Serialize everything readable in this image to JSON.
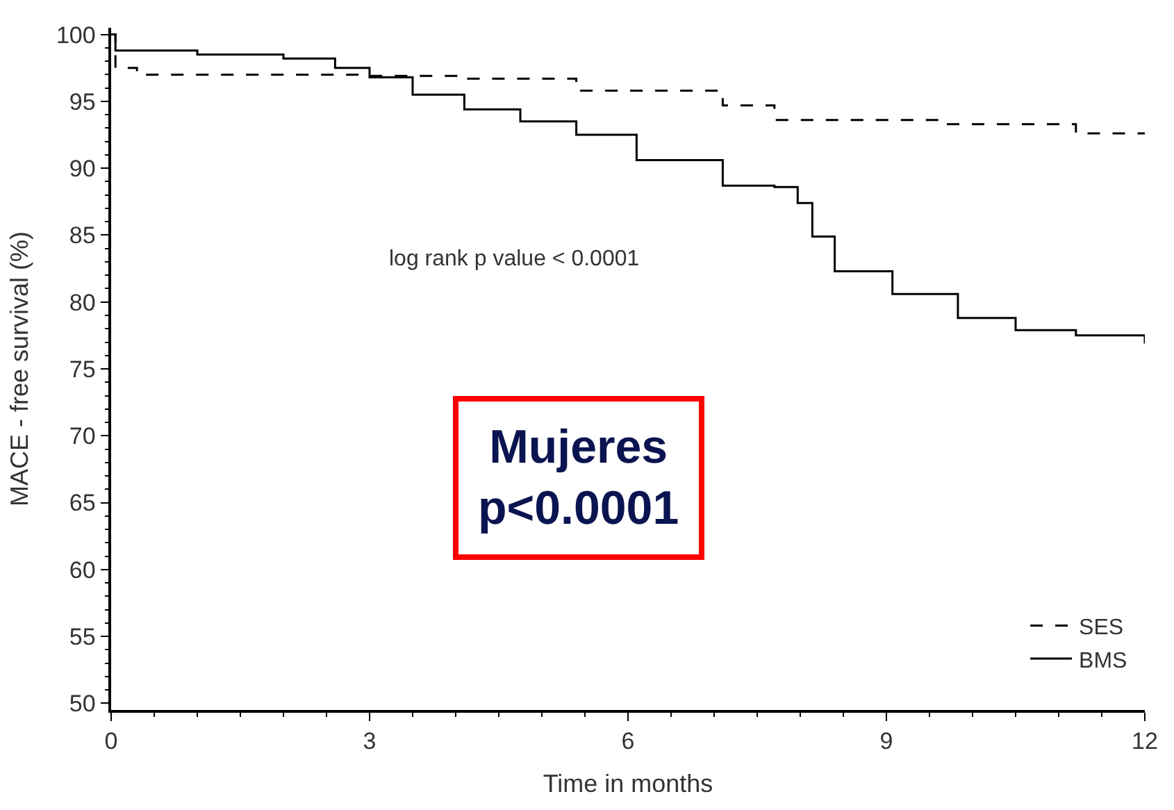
{
  "chart_data": {
    "type": "step",
    "xlabel": "Time in months",
    "ylabel": "MACE - free survival (%)",
    "xlim": [
      0,
      12
    ],
    "xticks": [
      0,
      3,
      6,
      9,
      12
    ],
    "ylim": [
      49.5,
      100.5
    ],
    "yticks": [
      50,
      55,
      60,
      65,
      70,
      75,
      80,
      85,
      90,
      95,
      100
    ],
    "legend": "bottom right",
    "annotations": [
      "log rank p value < 0.0001",
      "Mujeres\np<0.0001"
    ],
    "series": [
      {
        "name": "SES",
        "color": "#000000",
        "line_style": "dashed",
        "x": [
          0,
          0.05,
          0.3,
          3.0,
          4.1,
          5.4,
          7.1,
          7.7,
          9.7,
          11.2,
          12
        ],
        "values": [
          100,
          97.5,
          97.0,
          96.9,
          96.7,
          95.8,
          94.7,
          93.6,
          93.3,
          92.6,
          92.6
        ]
      },
      {
        "name": "BMS",
        "color": "#000000",
        "line_style": "solid",
        "x": [
          0,
          0.05,
          1.0,
          2.0,
          2.6,
          3.0,
          3.5,
          4.1,
          4.75,
          5.4,
          6.1,
          7.1,
          7.7,
          7.97,
          8.14,
          8.4,
          9.07,
          9.83,
          10.5,
          11.2,
          11.7,
          12
        ],
        "values": [
          100,
          98.8,
          98.5,
          98.2,
          97.5,
          96.8,
          95.5,
          94.4,
          93.5,
          92.5,
          90.6,
          88.7,
          88.6,
          87.4,
          84.9,
          82.3,
          80.6,
          78.8,
          77.9,
          77.5,
          77.5,
          76.9
        ]
      }
    ]
  }
}
